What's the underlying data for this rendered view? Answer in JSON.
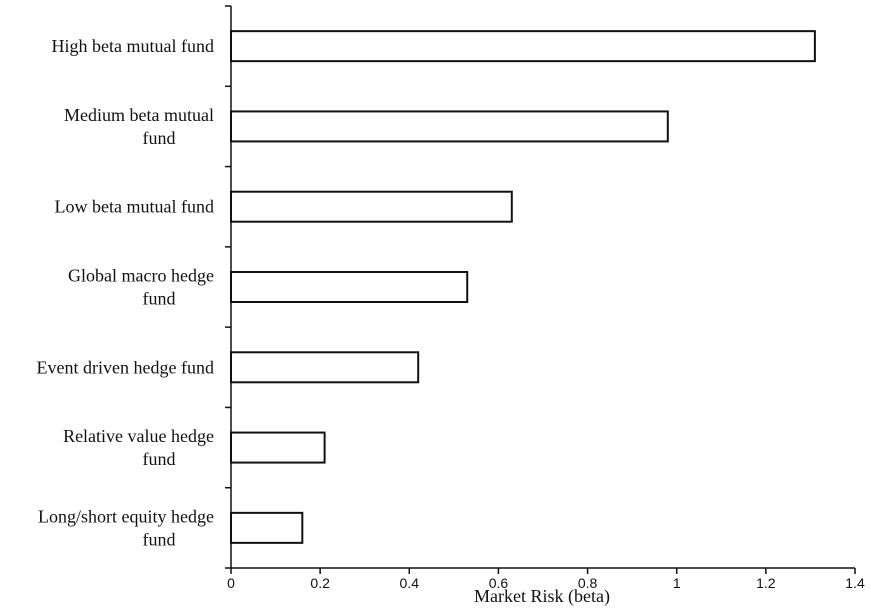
{
  "chart_data": {
    "type": "bar",
    "orientation": "horizontal",
    "categories": [
      "High beta mutual fund",
      "Medium beta mutual fund",
      "Low beta mutual fund",
      "Global macro hedge fund",
      "Event driven hedge fund",
      "Relative value hedge fund",
      "Long/short equity hedge fund"
    ],
    "category_label_lines": [
      [
        "High beta mutual fund"
      ],
      [
        "Medium beta mutual",
        "fund"
      ],
      [
        "Low beta mutual fund"
      ],
      [
        "Global macro hedge",
        "fund"
      ],
      [
        "Event driven hedge fund"
      ],
      [
        "Relative value hedge",
        "fund"
      ],
      [
        "Long/short equity hedge",
        "fund"
      ]
    ],
    "values": [
      1.31,
      0.98,
      0.63,
      0.53,
      0.42,
      0.21,
      0.16
    ],
    "title": "",
    "xlabel": "Market Risk (beta)",
    "ylabel": "",
    "xlim": [
      0,
      1.4
    ],
    "xticks": [
      0,
      0.2,
      0.4,
      0.6,
      0.8,
      1,
      1.2,
      1.4
    ],
    "xtick_labels": [
      "0",
      "0.2",
      "0.4",
      "0.6",
      "0.8",
      "1",
      "1.2",
      "1.4"
    ],
    "grid": false,
    "legend": "none",
    "colors": {
      "bar_fill": "#ffffff",
      "bar_stroke": "#111111",
      "axis": "#111111",
      "text": "#111111"
    }
  }
}
